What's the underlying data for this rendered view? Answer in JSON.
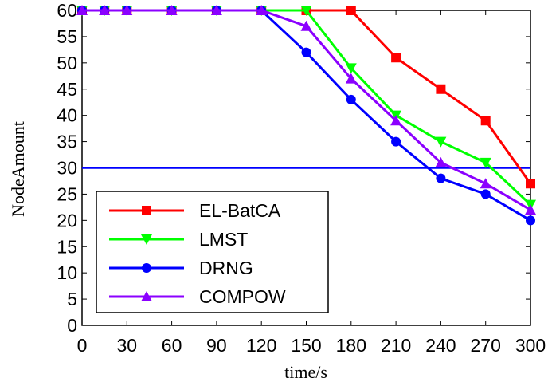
{
  "chart_data": {
    "type": "line",
    "xlabel": "time/s",
    "ylabel": "NodeAmount",
    "xlim": [
      0,
      300
    ],
    "ylim": [
      0,
      60
    ],
    "xticks": [
      0,
      30,
      60,
      90,
      120,
      150,
      180,
      210,
      240,
      270,
      300
    ],
    "xtick_labels": [
      "0",
      "30",
      "60",
      "90",
      "120",
      "150",
      "180",
      "210",
      "240",
      "270",
      "300"
    ],
    "yticks": [
      0,
      5,
      10,
      15,
      20,
      25,
      30,
      35,
      40,
      45,
      50,
      55,
      60
    ],
    "ytick_labels": [
      "0",
      "5",
      "10",
      "15",
      "20",
      "25",
      "30",
      "35",
      "40",
      "45",
      "50",
      "55",
      "60"
    ],
    "legend_position": "bottom-left",
    "grid": false,
    "reference_line": {
      "y": 30,
      "color": "#0000ff"
    },
    "series": [
      {
        "name": "EL-BatCA",
        "color": "#ff0000",
        "marker": "square",
        "x": [
          0,
          15,
          30,
          60,
          90,
          120,
          150,
          180,
          210,
          240,
          270,
          300
        ],
        "y": [
          60,
          60,
          60,
          60,
          60,
          60,
          60,
          60,
          51,
          45,
          39,
          27
        ]
      },
      {
        "name": "LMST",
        "color": "#00ff00",
        "marker": "triangle-down",
        "x": [
          0,
          15,
          30,
          60,
          90,
          120,
          150,
          180,
          210,
          240,
          270,
          300
        ],
        "y": [
          60,
          60,
          60,
          60,
          60,
          60,
          60,
          49,
          40,
          35,
          31,
          23
        ]
      },
      {
        "name": "DRNG",
        "color": "#0000ff",
        "marker": "circle",
        "x": [
          0,
          15,
          30,
          60,
          90,
          120,
          150,
          180,
          210,
          240,
          270,
          300
        ],
        "y": [
          60,
          60,
          60,
          60,
          60,
          60,
          52,
          43,
          35,
          28,
          25,
          20
        ]
      },
      {
        "name": "COMPOW",
        "color": "#8b00ff",
        "marker": "triangle-up",
        "x": [
          0,
          15,
          30,
          60,
          90,
          120,
          150,
          180,
          210,
          240,
          270,
          300
        ],
        "y": [
          60,
          60,
          60,
          60,
          60,
          60,
          57,
          47,
          39,
          31,
          27,
          22
        ]
      }
    ]
  }
}
